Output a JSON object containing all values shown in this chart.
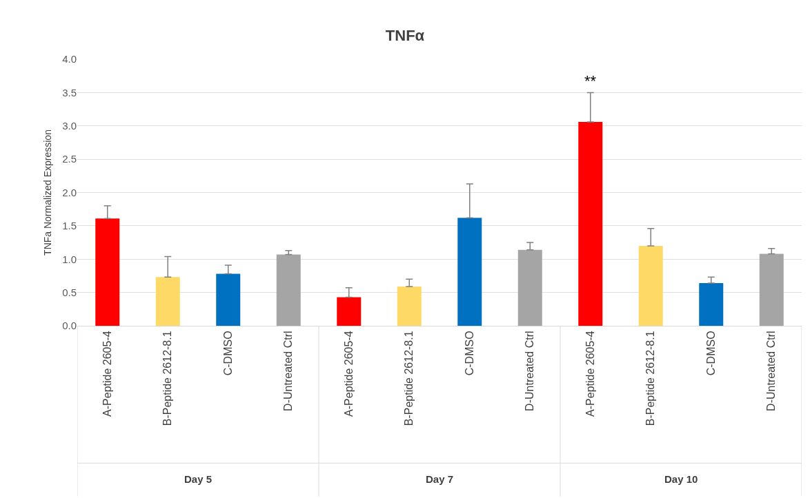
{
  "chart_data": {
    "type": "bar",
    "title": "TNFα",
    "ylabel": "TNFa Normalized Expression",
    "categories": [
      "A-Peptide 2605-4",
      "B-Peptide 2612-8.1",
      "C-DMSO",
      "D-Untreated Ctrl",
      "A-Peptide 2605-4",
      "B-Peptide 2612-8.1",
      "C-DMSO",
      "D-Untreated Ctrl",
      "A-Peptide 2605-4",
      "B-Peptide 2612-8.1",
      "C-DMSO",
      "D-Untreated Ctrl"
    ],
    "values": [
      1.61,
      0.73,
      0.78,
      1.07,
      0.43,
      0.59,
      1.62,
      1.14,
      3.06,
      1.2,
      0.64,
      1.08
    ],
    "colors": [
      "#ff0000",
      "#ffd966",
      "#0070c0",
      "#a5a5a5",
      "#ff0000",
      "#ffd966",
      "#0070c0",
      "#a5a5a5",
      "#ff0000",
      "#ffd966",
      "#0070c0",
      "#a5a5a5"
    ],
    "errors": [
      [
        1.61,
        1.8
      ],
      [
        0.73,
        1.04
      ],
      [
        0.78,
        0.91
      ],
      [
        1.07,
        1.13
      ],
      [
        0.43,
        0.57
      ],
      [
        0.59,
        0.7
      ],
      [
        1.62,
        2.13
      ],
      [
        1.14,
        1.25
      ],
      [
        3.06,
        3.5
      ],
      [
        1.2,
        1.46
      ],
      [
        0.64,
        0.73
      ],
      [
        1.08,
        1.16
      ]
    ],
    "ylim": [
      0,
      4
    ],
    "yticks": [
      {
        "value": 0,
        "label": "0.0"
      },
      {
        "value": 0.5,
        "label": "0.5"
      },
      {
        "value": 1,
        "label": "1.0"
      },
      {
        "value": 1.5,
        "label": "1.5"
      },
      {
        "value": 2,
        "label": "2.0"
      },
      {
        "value": 2.5,
        "label": "2.5"
      },
      {
        "value": 3,
        "label": "3.0"
      },
      {
        "value": 3.5,
        "label": "3.5"
      },
      {
        "value": 4,
        "label": "4.0"
      }
    ],
    "grid": "y",
    "annotations": [
      "Day 5",
      "Day 7",
      "Day 10",
      "**"
    ]
  }
}
